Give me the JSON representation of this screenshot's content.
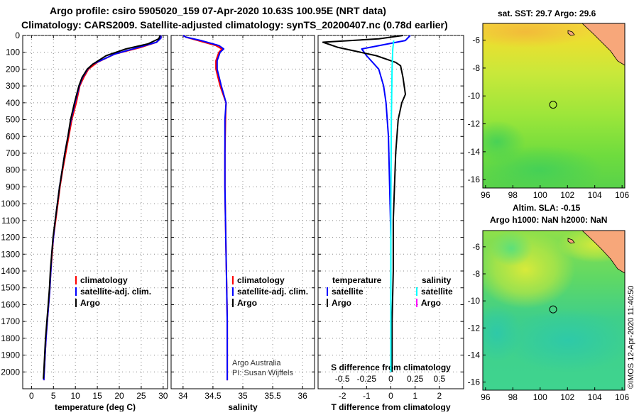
{
  "header": {
    "line1": "Argo profile: csiro 5905020_159 07-Apr-2020 10.63S 100.95E (NRT data)",
    "line2": "Climatology: CARS2009. Satellite-adjusted climatology: synTS_20200407.nc (0.78d earlier)"
  },
  "credits": {
    "institution": "Argo Australia",
    "pi": "PI: Susan Wijffels",
    "imos": "©IMOS 12-Apr-2020 11:40:50"
  },
  "colors": {
    "climatology": "#ff0000",
    "satellite": "#0000ff",
    "argo": "#000000",
    "satellite_salinity": "#00ffff",
    "argo_salinity": "#ff00ff"
  },
  "chart_data": [
    {
      "type": "line",
      "title": "",
      "xlabel": "temperature (deg C)",
      "ylabel": "",
      "xlim": [
        -2,
        31
      ],
      "ylim": [
        2100,
        0
      ],
      "x_ticks": [
        0,
        5,
        10,
        15,
        20,
        25,
        30
      ],
      "y_ticks": [
        0,
        100,
        200,
        300,
        400,
        500,
        600,
        700,
        800,
        900,
        1000,
        1100,
        1200,
        1300,
        1400,
        1500,
        1600,
        1700,
        1800,
        1900,
        2000
      ],
      "grid": true,
      "legend": "lower-center",
      "legend_entries": [
        "climatology",
        "satellite-adj. clim.",
        "Argo"
      ],
      "series": [
        {
          "name": "climatology",
          "color": "#ff0000",
          "points": [
            [
              29.5,
              0
            ],
            [
              29.5,
              15
            ],
            [
              28.5,
              40
            ],
            [
              25,
              70
            ],
            [
              19,
              110
            ],
            [
              15,
              160
            ],
            [
              13,
              200
            ],
            [
              11.9,
              250
            ],
            [
              11,
              300
            ],
            [
              10.2,
              400
            ],
            [
              9.2,
              500
            ],
            [
              8.5,
              600
            ],
            [
              7.8,
              700
            ],
            [
              7.1,
              800
            ],
            [
              6.5,
              900
            ],
            [
              6.0,
              1000
            ],
            [
              5.5,
              1100
            ],
            [
              5.0,
              1200
            ],
            [
              4.7,
              1300
            ],
            [
              4.4,
              1400
            ],
            [
              4.2,
              1500
            ],
            [
              3.9,
              1600
            ],
            [
              3.6,
              1700
            ],
            [
              3.3,
              1800
            ],
            [
              3.1,
              1900
            ],
            [
              2.9,
              2000
            ],
            [
              2.8,
              2050
            ]
          ]
        },
        {
          "name": "satellite-adj. clim.",
          "color": "#0000ff",
          "points": [
            [
              29.5,
              0
            ],
            [
              29.5,
              15
            ],
            [
              28.5,
              40
            ],
            [
              24.5,
              70
            ],
            [
              19,
              110
            ],
            [
              14,
              170
            ],
            [
              12.8,
              200
            ],
            [
              11.6,
              250
            ],
            [
              10.9,
              300
            ],
            [
              9.9,
              400
            ],
            [
              9.0,
              500
            ],
            [
              8.3,
              600
            ],
            [
              7.6,
              700
            ],
            [
              7.0,
              800
            ],
            [
              6.4,
              900
            ],
            [
              5.9,
              1000
            ],
            [
              5.4,
              1100
            ],
            [
              5.0,
              1200
            ],
            [
              4.6,
              1300
            ],
            [
              4.4,
              1400
            ],
            [
              4.2,
              1500
            ],
            [
              3.9,
              1600
            ],
            [
              3.6,
              1700
            ],
            [
              3.3,
              1800
            ],
            [
              3.1,
              1900
            ],
            [
              2.9,
              2000
            ],
            [
              2.8,
              2050
            ]
          ]
        },
        {
          "name": "Argo",
          "color": "#000000",
          "points": [
            [
              29.3,
              0
            ],
            [
              29.0,
              20
            ],
            [
              26.5,
              50
            ],
            [
              21.5,
              80
            ],
            [
              17,
              120
            ],
            [
              14,
              170
            ],
            [
              12.7,
              200
            ],
            [
              11.5,
              250
            ],
            [
              10.8,
              300
            ],
            [
              9.8,
              400
            ],
            [
              8.9,
              500
            ],
            [
              8.3,
              600
            ],
            [
              7.6,
              700
            ],
            [
              7.0,
              800
            ],
            [
              6.4,
              900
            ],
            [
              5.9,
              1000
            ],
            [
              5.4,
              1100
            ],
            [
              4.9,
              1200
            ],
            [
              4.6,
              1300
            ],
            [
              4.3,
              1400
            ],
            [
              4.1,
              1500
            ],
            [
              3.8,
              1600
            ],
            [
              3.5,
              1700
            ],
            [
              3.2,
              1800
            ],
            [
              3.0,
              1900
            ],
            [
              2.8,
              2000
            ],
            [
              2.7,
              2040
            ]
          ]
        }
      ]
    },
    {
      "type": "line",
      "title": "",
      "xlabel": "salinity",
      "ylabel": "",
      "xlim": [
        33.8,
        36.2
      ],
      "ylim": [
        2100,
        0
      ],
      "x_ticks": [
        34,
        34.5,
        35,
        35.5,
        36
      ],
      "x_tick_labels": [
        "34",
        "34.5",
        "35",
        "35.5",
        "36"
      ],
      "grid": true,
      "legend": "lower-center",
      "legend_entries": [
        "climatology",
        "satellite-adj. clim.",
        "Argo"
      ],
      "series": [
        {
          "name": "climatology",
          "color": "#ff0000",
          "points": [
            [
              34.0,
              0
            ],
            [
              34.05,
              10
            ],
            [
              34.25,
              30
            ],
            [
              34.55,
              60
            ],
            [
              34.65,
              80
            ],
            [
              34.6,
              100
            ],
            [
              34.55,
              150
            ],
            [
              34.55,
              200
            ],
            [
              34.62,
              300
            ],
            [
              34.72,
              400
            ],
            [
              34.71,
              500
            ],
            [
              34.7,
              700
            ],
            [
              34.7,
              900
            ],
            [
              34.71,
              1100
            ],
            [
              34.72,
              1300
            ],
            [
              34.73,
              1500
            ],
            [
              34.74,
              1700
            ],
            [
              34.74,
              1900
            ],
            [
              34.74,
              2050
            ]
          ]
        },
        {
          "name": "satellite-adj. clim.",
          "color": "#0000ff",
          "points": [
            [
              34.0,
              0
            ],
            [
              34.05,
              10
            ],
            [
              34.3,
              30
            ],
            [
              34.6,
              60
            ],
            [
              34.68,
              80
            ],
            [
              34.62,
              100
            ],
            [
              34.57,
              150
            ],
            [
              34.57,
              200
            ],
            [
              34.64,
              300
            ],
            [
              34.72,
              400
            ],
            [
              34.7,
              500
            ],
            [
              34.7,
              700
            ],
            [
              34.7,
              900
            ],
            [
              34.71,
              1100
            ],
            [
              34.72,
              1300
            ],
            [
              34.73,
              1500
            ],
            [
              34.74,
              1700
            ],
            [
              34.74,
              1900
            ],
            [
              34.74,
              2050
            ]
          ]
        }
      ]
    },
    {
      "type": "line",
      "title": "",
      "xlabel": "T difference from climatology",
      "xlabel_top": "S difference from climatology",
      "ylabel": "",
      "xlim": [
        -3,
        3
      ],
      "ylim": [
        2100,
        0
      ],
      "x_ticks": [
        -2,
        -1,
        0,
        1,
        2
      ],
      "x_ticks_top": [
        -0.5,
        -0.25,
        0,
        0.25,
        0.5
      ],
      "x_tick_labels_top": [
        "-0.5",
        "-0.25",
        "0",
        "0.25",
        "0.5"
      ],
      "grid": true,
      "legend": "lower-center",
      "legend_groups": [
        {
          "heading": "temperature",
          "entries": [
            "satellite",
            "Argo"
          ]
        },
        {
          "heading": "salinity",
          "entries": [
            "satellite",
            "Argo"
          ]
        }
      ],
      "series": [
        {
          "name": "temperature satellite",
          "color": "#0000ff",
          "points": [
            [
              0.8,
              0
            ],
            [
              0.6,
              30
            ],
            [
              -1.2,
              80
            ],
            [
              -1.0,
              120
            ],
            [
              -0.5,
              200
            ],
            [
              -0.3,
              300
            ],
            [
              -0.2,
              400
            ],
            [
              -0.1,
              600
            ],
            [
              -0.05,
              900
            ],
            [
              0,
              1200
            ],
            [
              0,
              1500
            ],
            [
              0,
              1800
            ],
            [
              0,
              2000
            ]
          ]
        },
        {
          "name": "temperature Argo",
          "color": "#000000",
          "points": [
            [
              0.5,
              0
            ],
            [
              -0.5,
              20
            ],
            [
              -2.8,
              40
            ],
            [
              -2.2,
              70
            ],
            [
              -0.6,
              120
            ],
            [
              0.2,
              160
            ],
            [
              0.4,
              180
            ],
            [
              0.5,
              250
            ],
            [
              0.6,
              350
            ],
            [
              0.45,
              400
            ],
            [
              0.3,
              500
            ],
            [
              0.2,
              700
            ],
            [
              0.15,
              900
            ],
            [
              0.1,
              1100
            ],
            [
              0.1,
              1400
            ],
            [
              0.05,
              1700
            ],
            [
              0.05,
              2000
            ]
          ]
        },
        {
          "name": "salinity satellite",
          "color": "#00ffff",
          "points": [
            [
              0.12,
              30
            ],
            [
              0.08,
              80
            ],
            [
              0.05,
              200
            ],
            [
              0.02,
              500
            ],
            [
              0.0,
              1000
            ],
            [
              0.0,
              1500
            ],
            [
              0.0,
              2000
            ]
          ]
        }
      ]
    }
  ],
  "maps": [
    {
      "title": "sat. SST: 29.7 Argo: 29.6",
      "lon_ticks": [
        96,
        98,
        100,
        102,
        104,
        106
      ],
      "lat_ticks": [
        -6,
        -8,
        -10,
        -12,
        -14,
        -16
      ],
      "marker": {
        "lon": 100.95,
        "lat": -10.63
      }
    },
    {
      "title": "Altim. SLA: -0.15",
      "subtitle": "Argo h1000: NaN h2000: NaN",
      "lon_ticks": [
        96,
        98,
        100,
        102,
        104,
        106
      ],
      "lat_ticks": [
        -6,
        -8,
        -10,
        -12,
        -14,
        -16
      ],
      "marker": {
        "lon": 100.95,
        "lat": -10.63
      }
    }
  ]
}
